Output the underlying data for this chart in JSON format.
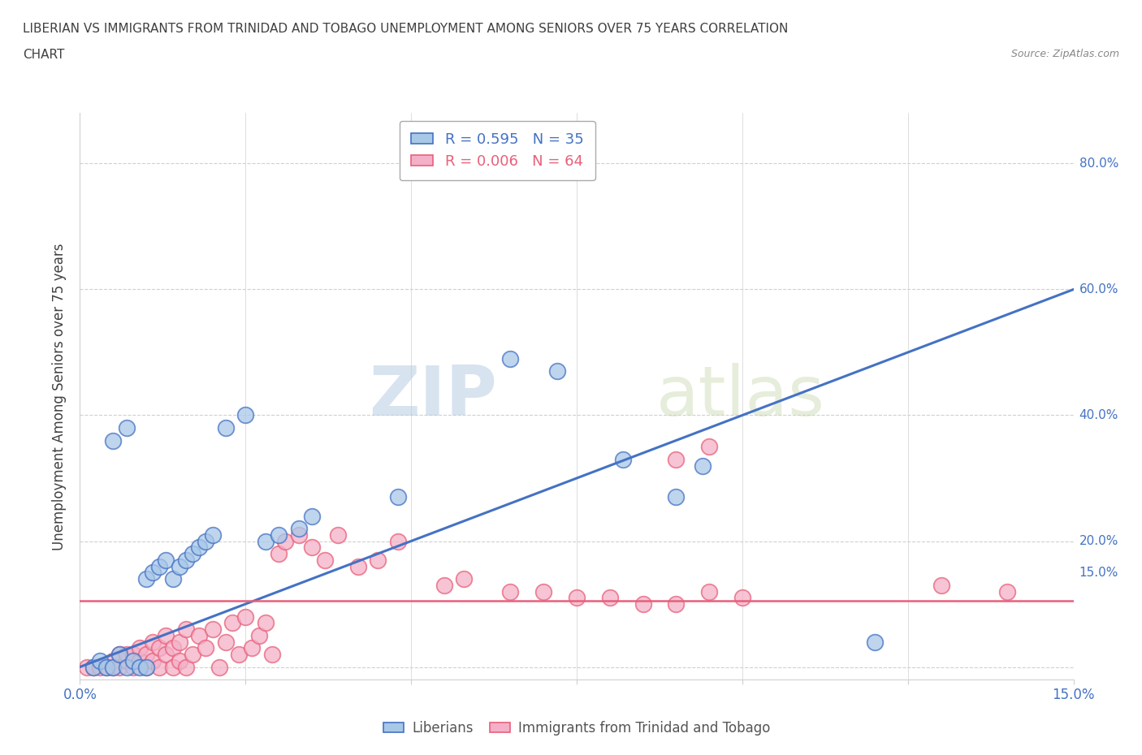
{
  "title_line1": "LIBERIAN VS IMMIGRANTS FROM TRINIDAD AND TOBAGO UNEMPLOYMENT AMONG SENIORS OVER 75 YEARS CORRELATION",
  "title_line2": "CHART",
  "source": "Source: ZipAtlas.com",
  "ylabel": "Unemployment Among Seniors over 75 years",
  "xlim": [
    0.0,
    0.15
  ],
  "ylim": [
    -0.02,
    0.88
  ],
  "color_blue": "#a8c8e8",
  "color_pink": "#f4b0c8",
  "line_blue": "#4472c4",
  "line_pink": "#e8607a",
  "legend_label_blue": "Liberians",
  "legend_label_pink": "Immigrants from Trinidad and Tobago",
  "watermark_zip": "ZIP",
  "watermark_atlas": "atlas",
  "blue_trend": [
    0.0,
    0.0,
    0.15,
    0.595
  ],
  "pink_trend_y": 0.105,
  "blue_points": [
    [
      0.002,
      0.0
    ],
    [
      0.003,
      0.01
    ],
    [
      0.004,
      0.0
    ],
    [
      0.005,
      0.0
    ],
    [
      0.006,
      0.02
    ],
    [
      0.007,
      0.0
    ],
    [
      0.008,
      0.01
    ],
    [
      0.009,
      0.0
    ],
    [
      0.01,
      0.0
    ],
    [
      0.01,
      0.14
    ],
    [
      0.011,
      0.15
    ],
    [
      0.012,
      0.16
    ],
    [
      0.013,
      0.17
    ],
    [
      0.014,
      0.14
    ],
    [
      0.015,
      0.16
    ],
    [
      0.016,
      0.17
    ],
    [
      0.017,
      0.18
    ],
    [
      0.018,
      0.19
    ],
    [
      0.019,
      0.2
    ],
    [
      0.02,
      0.21
    ],
    [
      0.005,
      0.36
    ],
    [
      0.007,
      0.38
    ],
    [
      0.022,
      0.38
    ],
    [
      0.025,
      0.4
    ],
    [
      0.028,
      0.2
    ],
    [
      0.03,
      0.21
    ],
    [
      0.033,
      0.22
    ],
    [
      0.035,
      0.24
    ],
    [
      0.048,
      0.27
    ],
    [
      0.065,
      0.49
    ],
    [
      0.072,
      0.47
    ],
    [
      0.082,
      0.33
    ],
    [
      0.09,
      0.27
    ],
    [
      0.094,
      0.32
    ],
    [
      0.12,
      0.04
    ]
  ],
  "pink_points": [
    [
      0.001,
      0.0
    ],
    [
      0.002,
      0.0
    ],
    [
      0.003,
      0.0
    ],
    [
      0.004,
      0.0
    ],
    [
      0.005,
      0.0
    ],
    [
      0.005,
      0.01
    ],
    [
      0.006,
      0.0
    ],
    [
      0.006,
      0.02
    ],
    [
      0.007,
      0.01
    ],
    [
      0.007,
      0.02
    ],
    [
      0.008,
      0.0
    ],
    [
      0.008,
      0.02
    ],
    [
      0.009,
      0.01
    ],
    [
      0.009,
      0.03
    ],
    [
      0.01,
      0.0
    ],
    [
      0.01,
      0.02
    ],
    [
      0.011,
      0.01
    ],
    [
      0.011,
      0.04
    ],
    [
      0.012,
      0.0
    ],
    [
      0.012,
      0.03
    ],
    [
      0.013,
      0.02
    ],
    [
      0.013,
      0.05
    ],
    [
      0.014,
      0.0
    ],
    [
      0.014,
      0.03
    ],
    [
      0.015,
      0.01
    ],
    [
      0.015,
      0.04
    ],
    [
      0.016,
      0.0
    ],
    [
      0.016,
      0.06
    ],
    [
      0.017,
      0.02
    ],
    [
      0.018,
      0.05
    ],
    [
      0.019,
      0.03
    ],
    [
      0.02,
      0.06
    ],
    [
      0.021,
      0.0
    ],
    [
      0.022,
      0.04
    ],
    [
      0.023,
      0.07
    ],
    [
      0.024,
      0.02
    ],
    [
      0.025,
      0.08
    ],
    [
      0.026,
      0.03
    ],
    [
      0.027,
      0.05
    ],
    [
      0.028,
      0.07
    ],
    [
      0.029,
      0.02
    ],
    [
      0.03,
      0.18
    ],
    [
      0.031,
      0.2
    ],
    [
      0.033,
      0.21
    ],
    [
      0.035,
      0.19
    ],
    [
      0.037,
      0.17
    ],
    [
      0.039,
      0.21
    ],
    [
      0.042,
      0.16
    ],
    [
      0.045,
      0.17
    ],
    [
      0.048,
      0.2
    ],
    [
      0.055,
      0.13
    ],
    [
      0.058,
      0.14
    ],
    [
      0.065,
      0.12
    ],
    [
      0.07,
      0.12
    ],
    [
      0.075,
      0.11
    ],
    [
      0.08,
      0.11
    ],
    [
      0.085,
      0.1
    ],
    [
      0.09,
      0.1
    ],
    [
      0.095,
      0.12
    ],
    [
      0.1,
      0.11
    ],
    [
      0.13,
      0.13
    ],
    [
      0.14,
      0.12
    ],
    [
      0.09,
      0.33
    ],
    [
      0.095,
      0.35
    ]
  ],
  "background_color": "#ffffff",
  "grid_color": "#d0d0d0",
  "title_color": "#404040",
  "axis_color": "#888888",
  "tick_color": "#4472c4"
}
